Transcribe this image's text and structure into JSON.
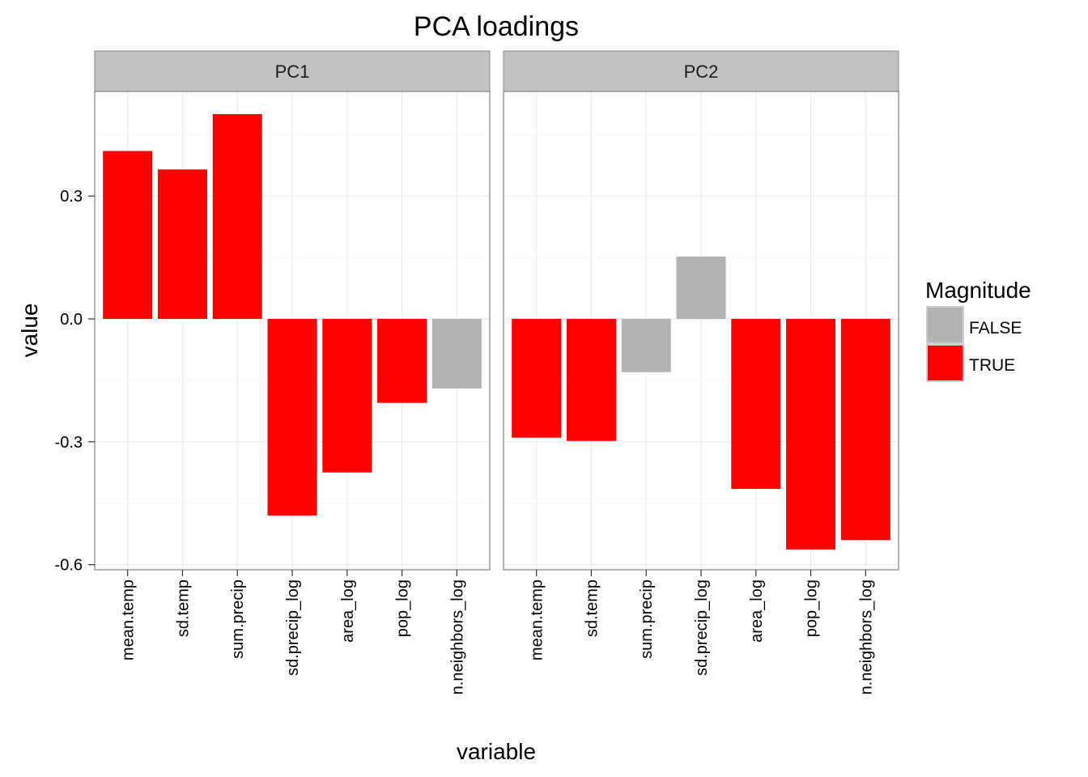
{
  "chart_data": {
    "type": "bar",
    "title": "PCA loadings",
    "xlabel": "variable",
    "ylabel": "value",
    "ylim": [
      -0.6,
      0.55
    ],
    "y_ticks": [
      -0.6,
      -0.3,
      0.0,
      0.3
    ],
    "y_tick_labels": [
      "-0.6",
      "-0.3",
      "0.0",
      "0.3"
    ],
    "categories": [
      "mean.temp",
      "sd.temp",
      "sum.precip",
      "sd.precip_log",
      "area_log",
      "pop_log",
      "n.neighbors_log"
    ],
    "facets": [
      {
        "name": "PC1",
        "values": [
          0.41,
          0.365,
          0.5,
          -0.48,
          -0.375,
          -0.205,
          -0.17
        ],
        "magnitude": [
          "TRUE",
          "TRUE",
          "TRUE",
          "TRUE",
          "TRUE",
          "TRUE",
          "FALSE"
        ]
      },
      {
        "name": "PC2",
        "values": [
          -0.29,
          -0.298,
          -0.13,
          0.152,
          -0.415,
          -0.563,
          -0.54
        ],
        "magnitude": [
          "TRUE",
          "TRUE",
          "FALSE",
          "FALSE",
          "TRUE",
          "TRUE",
          "TRUE"
        ]
      }
    ],
    "grid": true,
    "legend": {
      "title": "Magnitude",
      "position": "right",
      "entries": [
        {
          "label": "FALSE",
          "color": "#B2B2B2"
        },
        {
          "label": "TRUE",
          "color": "#FF0000"
        }
      ]
    }
  }
}
